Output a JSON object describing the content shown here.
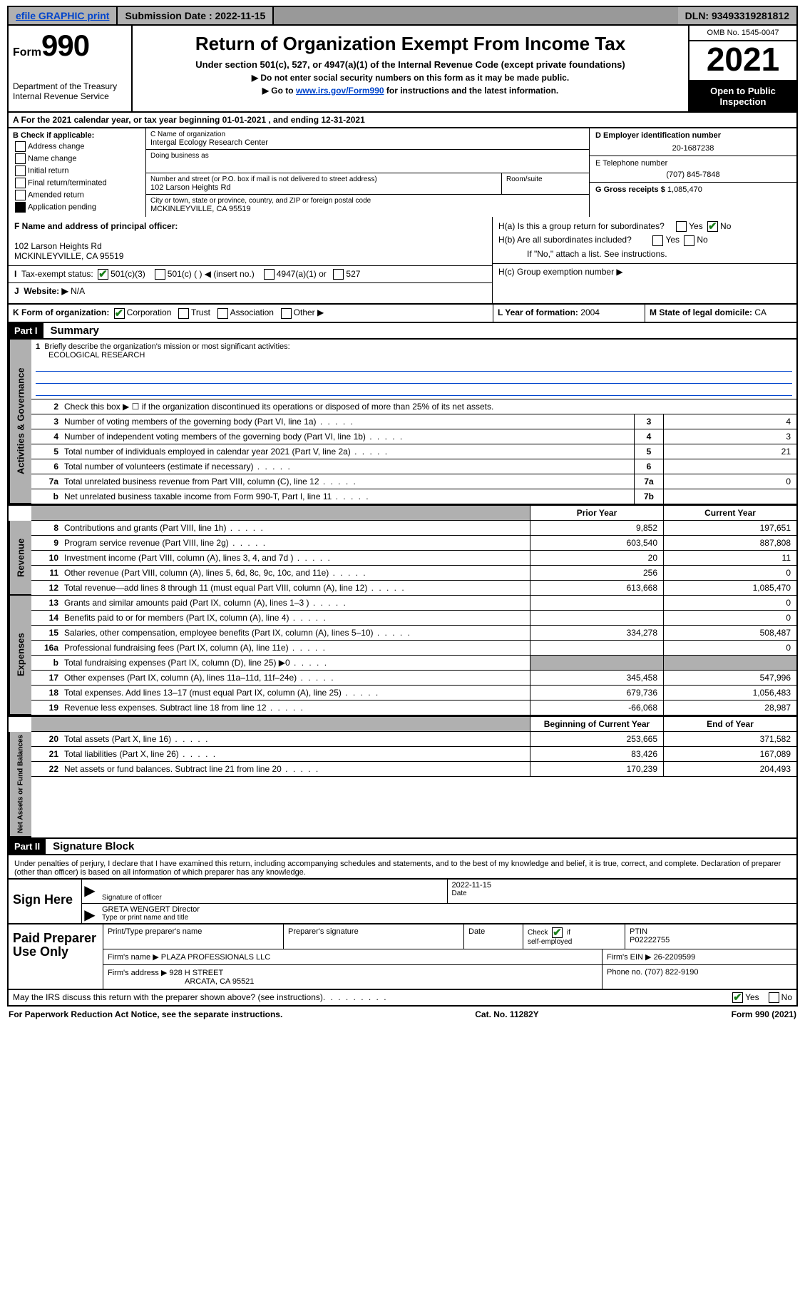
{
  "topbar": {
    "efile": "efile GRAPHIC print",
    "submission_label": "Submission Date : 2022-11-15",
    "dln": "DLN: 93493319281812"
  },
  "header": {
    "form_prefix": "Form",
    "form_number": "990",
    "dept": "Department of the Treasury",
    "irs": "Internal Revenue Service",
    "title": "Return of Organization Exempt From Income Tax",
    "subtitle": "Under section 501(c), 527, or 4947(a)(1) of the Internal Revenue Code (except private foundations)",
    "note1": "▶ Do not enter social security numbers on this form as it may be made public.",
    "note2_pre": "▶ Go to ",
    "note2_link": "www.irs.gov/Form990",
    "note2_post": " for instructions and the latest information.",
    "omb": "OMB No. 1545-0047",
    "year": "2021",
    "open": "Open to Public Inspection"
  },
  "row_a": "A For the 2021 calendar year, or tax year beginning 01-01-2021   , and ending 12-31-2021",
  "col_b": {
    "head": "B Check if applicable:",
    "opts": [
      "Address change",
      "Name change",
      "Initial return",
      "Final return/terminated",
      "Amended return",
      "Application pending"
    ]
  },
  "col_c": {
    "name_label": "C Name of organization",
    "org_name": "Intergal Ecology Research Center",
    "dba_label": "Doing business as",
    "addr_label": "Number and street (or P.O. box if mail is not delivered to street address)",
    "room_label": "Room/suite",
    "addr": "102 Larson Heights Rd",
    "city_label": "City or town, state or province, country, and ZIP or foreign postal code",
    "city": "MCKINLEYVILLE, CA  95519"
  },
  "col_d": {
    "ein_label": "D Employer identification number",
    "ein": "20-1687238",
    "phone_label": "E Telephone number",
    "phone": "(707) 845-7848",
    "gross_label": "G Gross receipts $",
    "gross": "1,085,470"
  },
  "row_f": {
    "f_label": "F Name and address of principal officer:",
    "f_addr1": "102 Larson Heights Rd",
    "f_addr2": "MCKINLEYVILLE, CA  95519"
  },
  "row_h": {
    "ha": "H(a)  Is this a group return for subordinates?",
    "hb": "H(b)  Are all subordinates included?",
    "hb_note": "If \"No,\" attach a list. See instructions.",
    "hc": "H(c)  Group exemption number ▶",
    "yes": "Yes",
    "no": "No"
  },
  "row_i": {
    "label": "Tax-exempt status:",
    "c3": "501(c)(3)",
    "c_blank": "501(c) (   ) ◀ (insert no.)",
    "a1": "4947(a)(1) or",
    "s527": "527"
  },
  "row_j": {
    "label": "Website: ▶",
    "val": "N/A"
  },
  "row_k": {
    "label": "K Form of organization:",
    "corp": "Corporation",
    "trust": "Trust",
    "assoc": "Association",
    "other": "Other ▶"
  },
  "row_l": {
    "label": "L Year of formation:",
    "val": "2004"
  },
  "row_m": {
    "label": "M State of legal domicile:",
    "val": "CA"
  },
  "part1": {
    "head": "Part I",
    "title": "Summary"
  },
  "summary": {
    "l1_label": "Briefly describe the organization's mission or most significant activities:",
    "l1_val": "ECOLOGICAL RESEARCH",
    "l2": "Check this box ▶ ☐  if the organization discontinued its operations or disposed of more than 25% of its net assets.",
    "rows_gov": [
      {
        "n": "3",
        "label": "Number of voting members of the governing body (Part VI, line 1a)",
        "box": "3",
        "val": "4"
      },
      {
        "n": "4",
        "label": "Number of independent voting members of the governing body (Part VI, line 1b)",
        "box": "4",
        "val": "3"
      },
      {
        "n": "5",
        "label": "Total number of individuals employed in calendar year 2021 (Part V, line 2a)",
        "box": "5",
        "val": "21"
      },
      {
        "n": "6",
        "label": "Total number of volunteers (estimate if necessary)",
        "box": "6",
        "val": ""
      },
      {
        "n": "7a",
        "label": "Total unrelated business revenue from Part VIII, column (C), line 12",
        "box": "7a",
        "val": "0"
      },
      {
        "n": "b",
        "label": "Net unrelated business taxable income from Form 990-T, Part I, line 11",
        "box": "7b",
        "val": ""
      }
    ],
    "head_prior": "Prior Year",
    "head_curr": "Current Year",
    "rows_rev": [
      {
        "n": "8",
        "label": "Contributions and grants (Part VIII, line 1h)",
        "prior": "9,852",
        "curr": "197,651"
      },
      {
        "n": "9",
        "label": "Program service revenue (Part VIII, line 2g)",
        "prior": "603,540",
        "curr": "887,808"
      },
      {
        "n": "10",
        "label": "Investment income (Part VIII, column (A), lines 3, 4, and 7d )",
        "prior": "20",
        "curr": "11"
      },
      {
        "n": "11",
        "label": "Other revenue (Part VIII, column (A), lines 5, 6d, 8c, 9c, 10c, and 11e)",
        "prior": "256",
        "curr": "0"
      },
      {
        "n": "12",
        "label": "Total revenue—add lines 8 through 11 (must equal Part VIII, column (A), line 12)",
        "prior": "613,668",
        "curr": "1,085,470"
      }
    ],
    "rows_exp": [
      {
        "n": "13",
        "label": "Grants and similar amounts paid (Part IX, column (A), lines 1–3 )",
        "prior": "",
        "curr": "0"
      },
      {
        "n": "14",
        "label": "Benefits paid to or for members (Part IX, column (A), line 4)",
        "prior": "",
        "curr": "0"
      },
      {
        "n": "15",
        "label": "Salaries, other compensation, employee benefits (Part IX, column (A), lines 5–10)",
        "prior": "334,278",
        "curr": "508,487"
      },
      {
        "n": "16a",
        "label": "Professional fundraising fees (Part IX, column (A), line 11e)",
        "prior": "",
        "curr": "0"
      },
      {
        "n": "b",
        "label": "Total fundraising expenses (Part IX, column (D), line 25) ▶0",
        "prior": "SHADE",
        "curr": "SHADE"
      },
      {
        "n": "17",
        "label": "Other expenses (Part IX, column (A), lines 11a–11d, 11f–24e)",
        "prior": "345,458",
        "curr": "547,996"
      },
      {
        "n": "18",
        "label": "Total expenses. Add lines 13–17 (must equal Part IX, column (A), line 25)",
        "prior": "679,736",
        "curr": "1,056,483"
      },
      {
        "n": "19",
        "label": "Revenue less expenses. Subtract line 18 from line 12",
        "prior": "-66,068",
        "curr": "28,987"
      }
    ],
    "head_begin": "Beginning of Current Year",
    "head_end": "End of Year",
    "rows_net": [
      {
        "n": "20",
        "label": "Total assets (Part X, line 16)",
        "prior": "253,665",
        "curr": "371,582"
      },
      {
        "n": "21",
        "label": "Total liabilities (Part X, line 26)",
        "prior": "83,426",
        "curr": "167,089"
      },
      {
        "n": "22",
        "label": "Net assets or fund balances. Subtract line 21 from line 20",
        "prior": "170,239",
        "curr": "204,493"
      }
    ],
    "tab_gov": "Activities & Governance",
    "tab_rev": "Revenue",
    "tab_exp": "Expenses",
    "tab_net": "Net Assets or Fund Balances"
  },
  "part2": {
    "head": "Part II",
    "title": "Signature Block"
  },
  "sig": {
    "declaration": "Under penalties of perjury, I declare that I have examined this return, including accompanying schedules and statements, and to the best of my knowledge and belief, it is true, correct, and complete. Declaration of preparer (other than officer) is based on all information of which preparer has any knowledge.",
    "sign_here": "Sign Here",
    "sig_officer": "Signature of officer",
    "date_label": "Date",
    "date_val": "2022-11-15",
    "officer_name": "GRETA WENGERT  Director",
    "type_name": "Type or print name and title"
  },
  "preparer": {
    "title": "Paid Preparer Use Only",
    "print_name": "Print/Type preparer's name",
    "prep_sig": "Preparer's signature",
    "date": "Date",
    "check_self": "Check ☑ if self-employed",
    "ptin_label": "PTIN",
    "ptin": "P02222755",
    "firm_name_label": "Firm's name    ▶",
    "firm_name": "PLAZA PROFESSIONALS LLC",
    "firm_ein_label": "Firm's EIN ▶",
    "firm_ein": "26-2209599",
    "firm_addr_label": "Firm's address ▶",
    "firm_addr1": "928 H STREET",
    "firm_addr2": "ARCATA, CA  95521",
    "firm_phone_label": "Phone no.",
    "firm_phone": "(707) 822-9190"
  },
  "footer": {
    "discuss": "May the IRS discuss this return with the preparer shown above? (see instructions)",
    "yes": "Yes",
    "no": "No",
    "paperwork": "For Paperwork Reduction Act Notice, see the separate instructions.",
    "cat": "Cat. No. 11282Y",
    "form": "Form 990 (2021)"
  },
  "colors": {
    "gray": "#b0b0b0",
    "link": "#0044cc",
    "check_green": "#1a7f1a"
  }
}
